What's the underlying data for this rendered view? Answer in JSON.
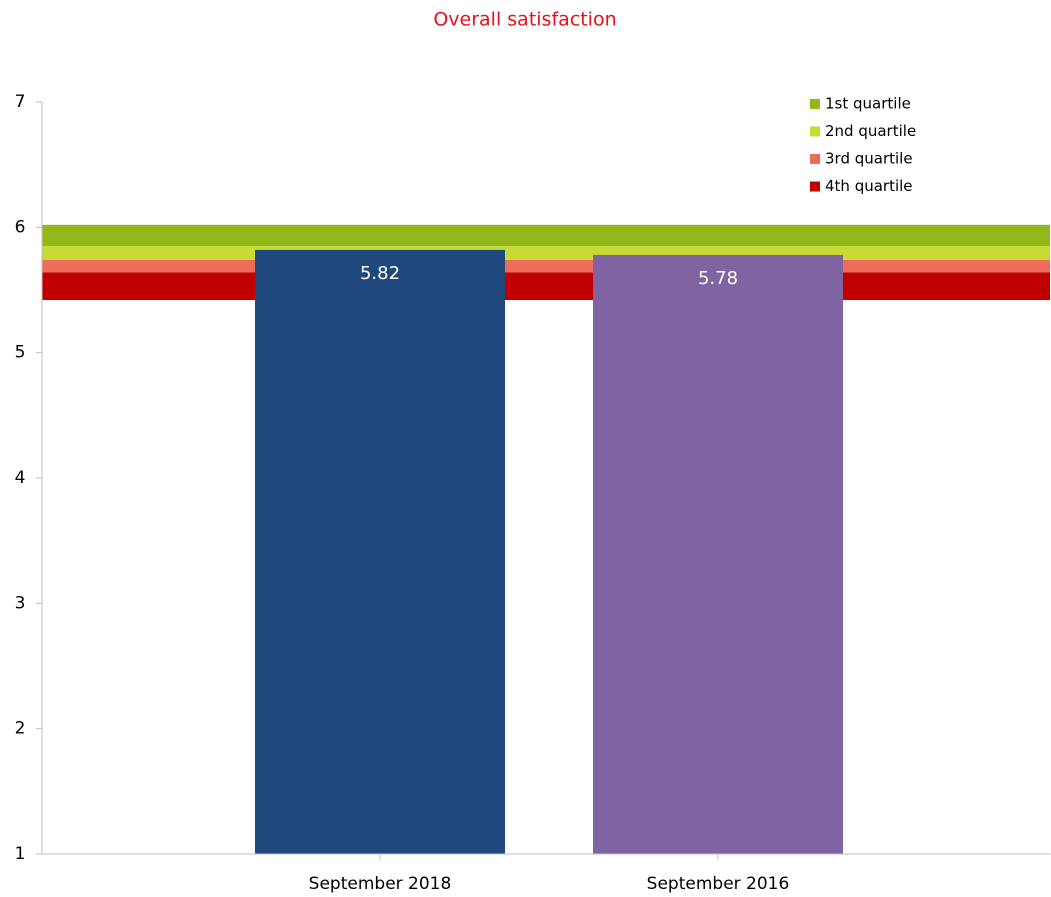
{
  "chart_data": {
    "type": "bar",
    "title": "Overall satisfaction",
    "categories": [
      "September 2018",
      "September 2016"
    ],
    "values": [
      5.82,
      5.78
    ],
    "colors": [
      "#1f497d",
      "#8064a2"
    ],
    "bands": [
      {
        "name": "1st quartile",
        "color": "#92b81c",
        "range": [
          5.85,
          6.02
        ]
      },
      {
        "name": "2nd quartile",
        "color": "#c6dc32",
        "range": [
          5.74,
          5.85
        ]
      },
      {
        "name": "3rd quartile",
        "color": "#ef6b5b",
        "range": [
          5.64,
          5.74
        ]
      },
      {
        "name": "4th quartile",
        "color": "#c00000",
        "range": [
          5.42,
          5.64
        ]
      }
    ],
    "ylim": [
      1,
      7
    ],
    "yticks": [
      1,
      2,
      3,
      4,
      5,
      6,
      7
    ],
    "legend": "top-right"
  }
}
